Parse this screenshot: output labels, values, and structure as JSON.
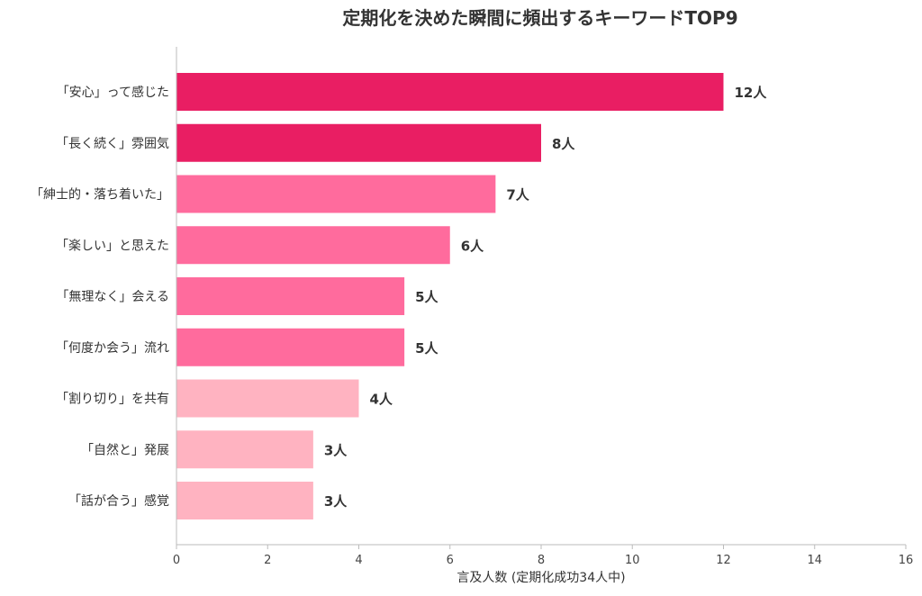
{
  "chart_data": {
    "type": "bar",
    "orientation": "horizontal",
    "title": "定期化を決めた瞬間に頻出するキーワードTOP9",
    "xlabel": "言及人数 (定期化成功34人中)",
    "ylabel": "",
    "xlim": [
      0,
      16
    ],
    "xticks": [
      0,
      2,
      4,
      6,
      8,
      10,
      12,
      14,
      16
    ],
    "grid": false,
    "legend": "none",
    "value_suffix": "人",
    "categories": [
      "「安心」って感じた",
      "「長く続く」雰囲気",
      "「紳士的・落ち着いた」",
      "「楽しい」と思えた",
      "「無理なく」会える",
      "「何度か会う」流れ",
      "「割り切り」を共有",
      "「自然と」発展",
      "「話が合う」感覚"
    ],
    "values": [
      12,
      8,
      7,
      6,
      5,
      5,
      4,
      3,
      3
    ],
    "value_labels": [
      "12人",
      "8人",
      "7人",
      "6人",
      "5人",
      "5人",
      "4人",
      "3人",
      "3人"
    ],
    "bar_colors": [
      "#e91e63",
      "#e91e63",
      "#ff6b9d",
      "#ff6b9d",
      "#ff6b9d",
      "#ff6b9d",
      "#ffb3c1",
      "#ffb3c1",
      "#ffb3c1"
    ]
  }
}
